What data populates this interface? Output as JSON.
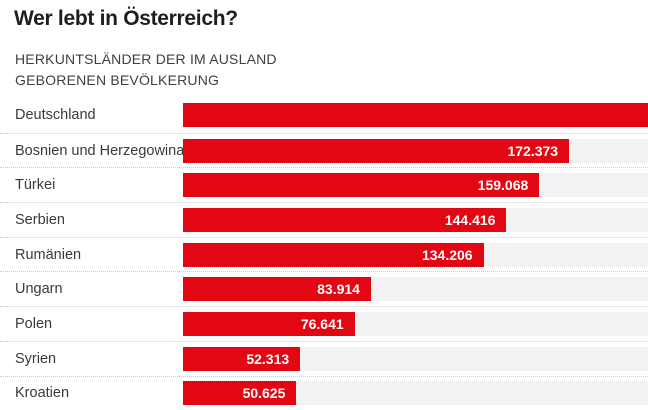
{
  "header": {
    "title": "Wer lebt in Österreich?",
    "subtitle_line1": "HERKUNTSLÄNDER DER IM AUSLAND",
    "subtitle_line2": "GEBORENEN BEVÖLKERUNG"
  },
  "colors": {
    "page_bg": "#ffffff",
    "bar": "#e30613",
    "track": "#f2f2f2",
    "title": "#1e1e1e",
    "subtitle": "#3f3f3f",
    "label": "#3a3a3a",
    "value_text": "#ffffff",
    "separator": "#cbcbcb"
  },
  "chart_data": {
    "type": "bar",
    "orientation": "horizontal",
    "title": "Wer lebt in Österreich?",
    "subtitle": "HERKUNTSLÄNDER DER IM AUSLAND GEBORENEN BEVÖLKERUNG",
    "categories": [
      "Deutschland",
      "Bosnien und Herzegowina",
      "Türkei",
      "Serbien",
      "Rumänien",
      "Ungarn",
      "Polen",
      "Syrien",
      "Kroatien"
    ],
    "values": [
      null,
      172373,
      159068,
      144416,
      134206,
      83914,
      76641,
      52313,
      50625
    ],
    "value_labels": [
      "",
      "172.373",
      "159.068",
      "144.416",
      "134.206",
      "83.914",
      "76.641",
      "52.313",
      "50.625"
    ],
    "axis_max": 207600,
    "legend": "none",
    "grid": "off",
    "overflow_bars": [
      "Deutschland"
    ]
  }
}
